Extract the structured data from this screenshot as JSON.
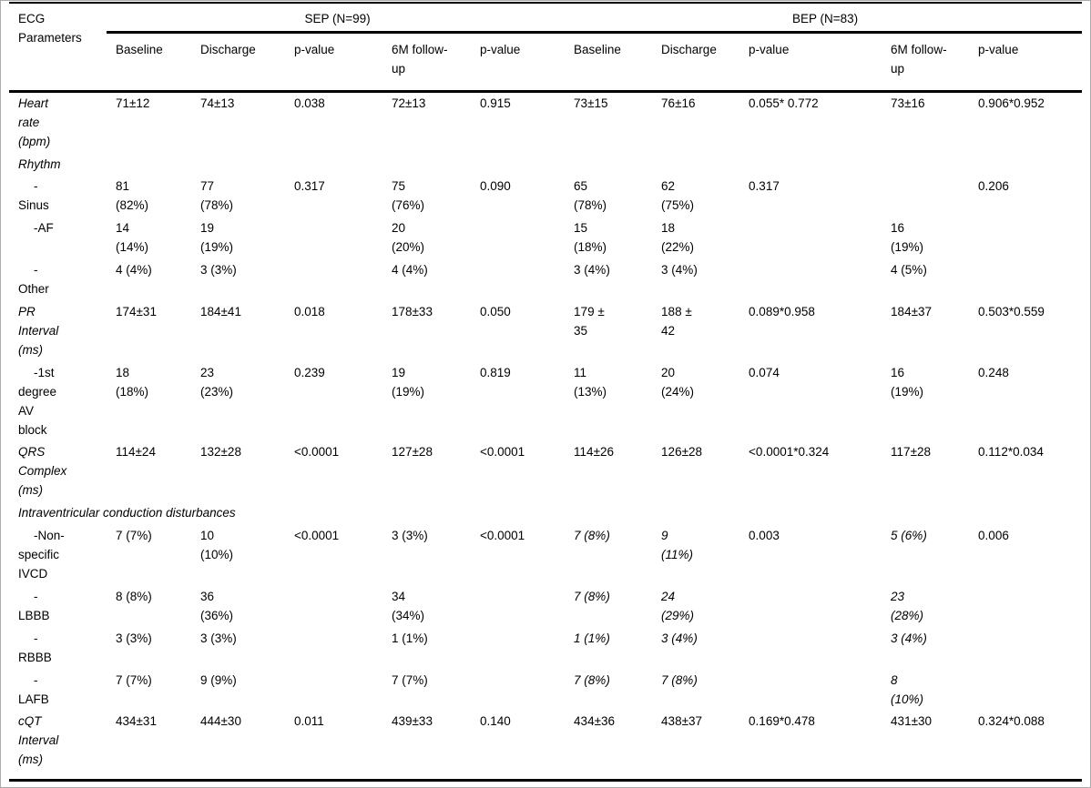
{
  "table": {
    "corner_label": "ECG\nParameters",
    "groups": [
      {
        "label": "SEP (N=99)"
      },
      {
        "label": "BEP (N=83)"
      }
    ],
    "columns": [
      "Baseline",
      "Discharge",
      "p-value",
      "6M follow-\nup",
      "p-value",
      "Baseline",
      "Discharge",
      "p-value",
      "6M follow-\nup",
      "p-value"
    ],
    "rows": [
      {
        "label": "Heart\nrate\n(bpm)",
        "style": "param",
        "cells": [
          "71±12",
          "74±13",
          "0.038",
          "72±13",
          "0.915",
          "73±15",
          "76±16",
          "0.055* 0.772",
          "73±16",
          "0.906*0.952"
        ]
      },
      {
        "label": "Rhythm",
        "style": "param",
        "cells": [
          "",
          "",
          "",
          "",
          "",
          "",
          "",
          "",
          "",
          ""
        ]
      },
      {
        "label": "-\nSinus",
        "style": "sub",
        "cells": [
          "81\n(82%)",
          "77\n(78%)",
          "0.317",
          "75\n(76%)",
          "0.090",
          "65\n(78%)",
          "62\n(75%)",
          "0.317",
          "",
          "0.206"
        ]
      },
      {
        "label": "-AF",
        "style": "sub",
        "cells": [
          "14\n(14%)",
          "19\n(19%)",
          "",
          "20\n(20%)",
          "",
          "15\n(18%)",
          "18\n(22%)",
          "",
          "16\n(19%)",
          ""
        ]
      },
      {
        "label": "-\nOther",
        "style": "sub",
        "cells": [
          "4 (4%)",
          "3 (3%)",
          "",
          "4 (4%)",
          "",
          "3 (4%)",
          "3 (4%)",
          "",
          "4 (5%)",
          ""
        ]
      },
      {
        "label": "PR\nInterval\n(ms)",
        "style": "param",
        "cells": [
          "174±31",
          "184±41",
          "0.018",
          "178±33",
          "0.050",
          "179 ±\n35",
          "188 ±\n42",
          "0.089*0.958",
          "184±37",
          "0.503*0.559"
        ]
      },
      {
        "label": "-1st\ndegree\nAV\nblock",
        "style": "sub",
        "cells": [
          "18\n(18%)",
          "23\n(23%)",
          "0.239",
          "19\n(19%)",
          "0.819",
          "11\n(13%)",
          "20\n(24%)",
          "0.074",
          "16\n(19%)",
          "0.248"
        ]
      },
      {
        "label": "QRS\nComplex\n(ms)",
        "style": "param",
        "cells": [
          "114±24",
          "132±28",
          "<0.0001",
          "127±28",
          "<0.0001",
          "114±26",
          "126±28",
          "<0.0001*0.324",
          "117±28",
          "0.112*0.034"
        ]
      },
      {
        "label": "Intraventricular conduction disturbances",
        "style": "section",
        "cells": []
      },
      {
        "label": "-Non-\nspecific\nIVCD",
        "style": "sub",
        "italic_cells": [
          5,
          6,
          8
        ],
        "cells": [
          "7 (7%)",
          "10\n(10%)",
          "<0.0001",
          "3 (3%)",
          "<0.0001",
          "7 (8%)",
          "9\n(11%)",
          "0.003",
          "5 (6%)",
          "0.006"
        ]
      },
      {
        "label": "-\nLBBB",
        "style": "sub",
        "italic_cells": [
          5,
          6,
          8
        ],
        "cells": [
          "8 (8%)",
          "36\n(36%)",
          "",
          "34\n(34%)",
          "",
          "7 (8%)",
          "24\n(29%)",
          "",
          "23\n(28%)",
          ""
        ]
      },
      {
        "label": "-\nRBBB",
        "style": "sub",
        "italic_cells": [
          5,
          6,
          8
        ],
        "cells": [
          "3 (3%)",
          "3 (3%)",
          "",
          "1 (1%)",
          "",
          "1 (1%)",
          "3 (4%)",
          "",
          "3 (4%)",
          ""
        ]
      },
      {
        "label": "-\nLAFB",
        "style": "sub",
        "italic_cells": [
          5,
          6,
          8
        ],
        "cells": [
          "7 (7%)",
          "9 (9%)",
          "",
          "7 (7%)",
          "",
          "7 (8%)",
          "7 (8%)",
          "",
          "8\n(10%)",
          ""
        ]
      },
      {
        "label": "cQT\nInterval\n(ms)",
        "style": "param",
        "cells": [
          "434±31",
          "444±30",
          "0.011",
          "439±33",
          "0.140",
          "434±36",
          "438±37",
          "0.169*0.478",
          "431±30",
          "0.324*0.088"
        ]
      }
    ]
  }
}
